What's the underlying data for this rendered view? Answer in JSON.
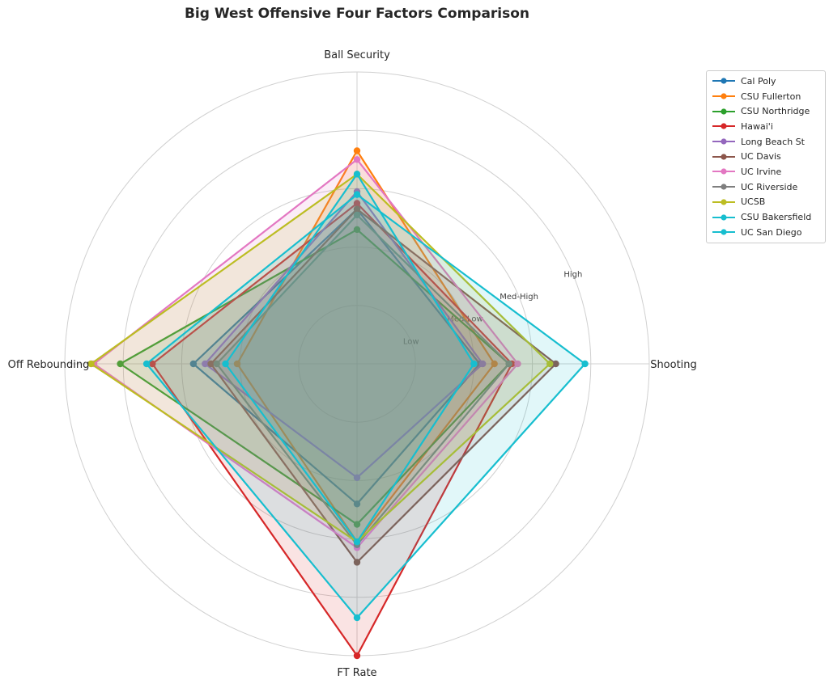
{
  "chart_data": {
    "type": "radar",
    "title": "Big West Offensive Four Factors Comparison",
    "axes": [
      "Ball Security",
      "Shooting",
      "FT Rate",
      "Off Rebounding"
    ],
    "ring_labels": [
      "Low",
      "Med-Low",
      "Med-High",
      "High"
    ],
    "grid": true,
    "legend_position": "outside top-right",
    "series": [
      {
        "name": "Cal Poly",
        "color": "#1f77b4",
        "values": [
          0.53,
          0.42,
          0.48,
          0.56
        ]
      },
      {
        "name": "CSU Fullerton",
        "color": "#ff7f0e",
        "values": [
          0.73,
          0.47,
          0.61,
          0.41
        ]
      },
      {
        "name": "CSU Northridge",
        "color": "#2ca02c",
        "values": [
          0.46,
          0.52,
          0.55,
          0.81
        ]
      },
      {
        "name": "Hawai'i",
        "color": "#d62728",
        "values": [
          0.55,
          0.53,
          1.0,
          0.7
        ]
      },
      {
        "name": "Long Beach St",
        "color": "#9467bd",
        "values": [
          0.59,
          0.43,
          0.39,
          0.52
        ]
      },
      {
        "name": "UC Davis",
        "color": "#8c564b",
        "values": [
          0.53,
          0.68,
          0.68,
          0.5
        ]
      },
      {
        "name": "UC Irvine",
        "color": "#e377c2",
        "values": [
          0.7,
          0.55,
          0.63,
          0.9
        ]
      },
      {
        "name": "UC Riverside",
        "color": "#7f7f7f",
        "values": [
          0.51,
          0.52,
          0.62,
          0.48
        ]
      },
      {
        "name": "UCSB",
        "color": "#bcbd22",
        "values": [
          0.65,
          0.66,
          0.61,
          0.91
        ]
      },
      {
        "name": "CSU Bakersfield",
        "color": "#17becf",
        "values": [
          0.65,
          0.4,
          0.61,
          0.45
        ]
      },
      {
        "name": "UC San Diego",
        "color": "#17becf",
        "values": [
          0.58,
          0.78,
          0.87,
          0.72
        ]
      }
    ]
  }
}
